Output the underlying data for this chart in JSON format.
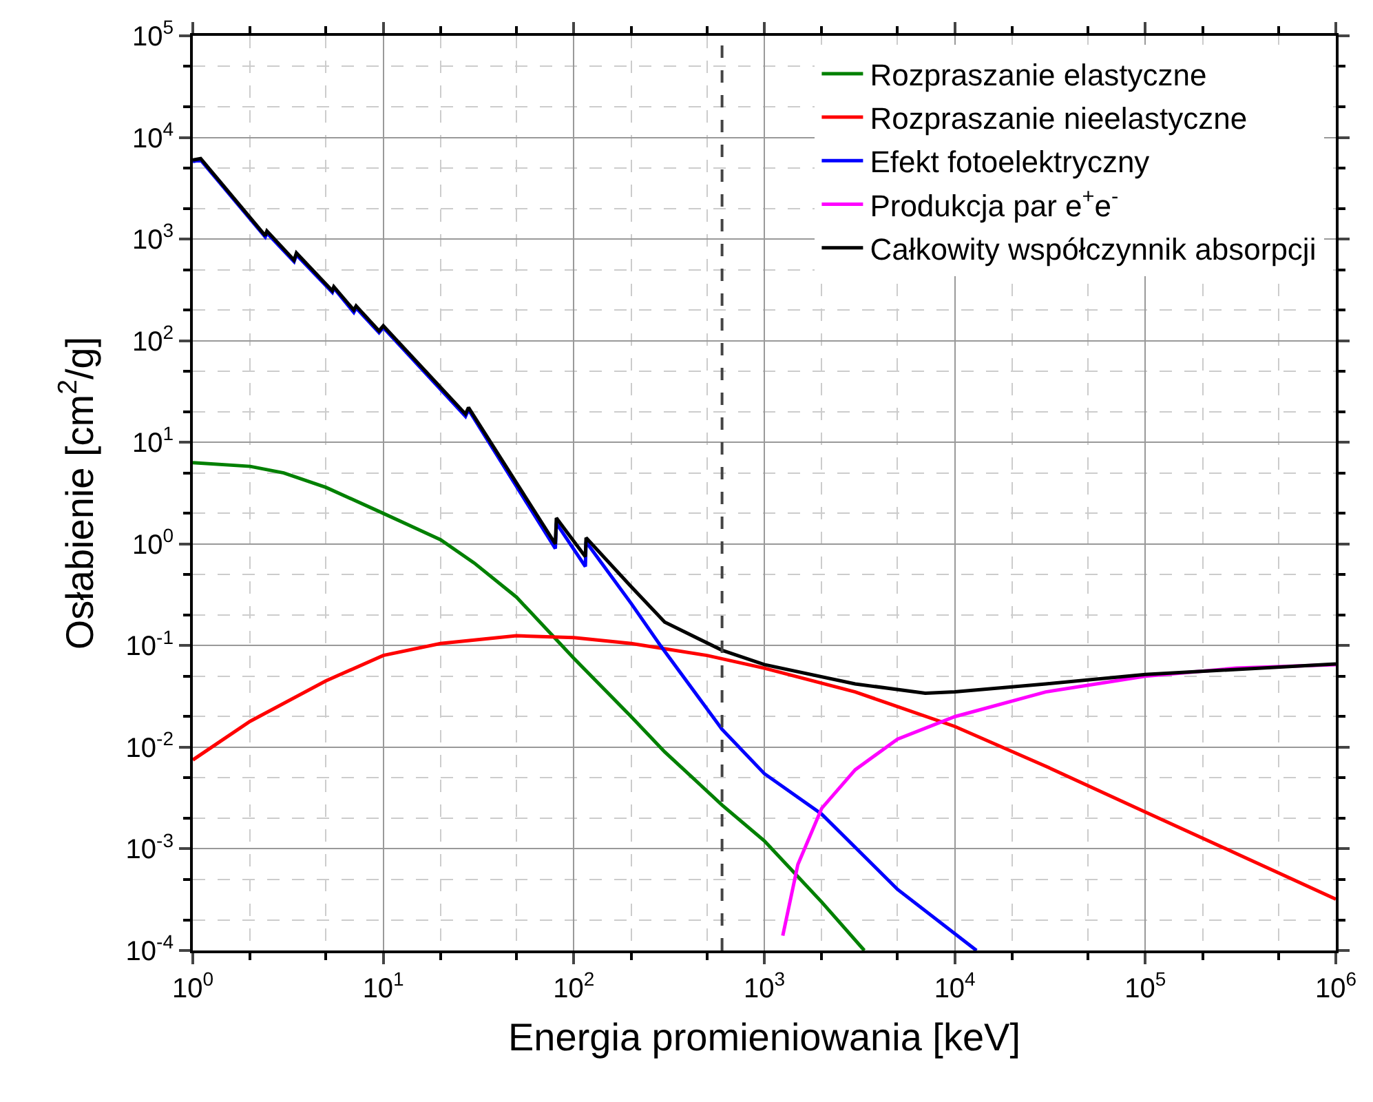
{
  "chart_data": {
    "type": "line",
    "xlabel": "Energia promieniowania [keV]",
    "ylabel": "Osłabienie [cm$^{2}$/g]",
    "log": "xy",
    "grid": true,
    "legend": "top right",
    "line_style": "solid",
    "marker": "none",
    "xlim": [
      1,
      1000000
    ],
    "ylim": [
      0.0001,
      100000
    ],
    "xticks": [
      {
        "value": 1,
        "label": "10$^{0}$"
      },
      {
        "value": 10,
        "label": "10$^{1}$"
      },
      {
        "value": 100,
        "label": "10$^{2}$"
      },
      {
        "value": 1000,
        "label": "10$^{3}$"
      },
      {
        "value": 10000,
        "label": "10$^{4}$"
      },
      {
        "value": 100000,
        "label": "10$^{5}$"
      },
      {
        "value": 1000000,
        "label": "10$^{6}$"
      }
    ],
    "yticks": [
      {
        "value": 0.0001,
        "label": "10$^{-4}$"
      },
      {
        "value": 0.001,
        "label": "10$^{-3}$"
      },
      {
        "value": 0.01,
        "label": "10$^{-2}$"
      },
      {
        "value": 0.1,
        "label": "10$^{-1}$"
      },
      {
        "value": 1,
        "label": "10$^{0}$"
      },
      {
        "value": 10,
        "label": "10$^{1}$"
      },
      {
        "value": 100,
        "label": "10$^{2}$"
      },
      {
        "value": 1000,
        "label": "10$^{3}$"
      },
      {
        "value": 10000,
        "label": "10$^{4}$"
      },
      {
        "value": 100000,
        "label": "10$^{5}$"
      }
    ],
    "ref_lines": [
      {
        "axis": "x",
        "value": 600,
        "color": "#444444",
        "line_style": "dashed"
      }
    ],
    "series": [
      {
        "name": "Rozpraszanie elastyczne",
        "color": "#008000",
        "x": [
          1,
          2,
          3,
          5,
          10,
          20,
          30,
          50,
          100,
          200,
          300,
          600,
          1000,
          2000,
          3350
        ],
        "values": [
          6.3,
          5.8,
          5.0,
          3.6,
          2.0,
          1.1,
          0.65,
          0.3,
          0.075,
          0.02,
          0.009,
          0.0027,
          0.0012,
          0.0003,
          0.0001
        ]
      },
      {
        "name": "Rozpraszanie nieelastyczne",
        "color": "#ff0000",
        "x": [
          1,
          2,
          5,
          10,
          20,
          50,
          100,
          200,
          500,
          1000,
          3000,
          10000,
          30000,
          100000,
          300000,
          1000000
        ],
        "values": [
          0.0075,
          0.018,
          0.045,
          0.08,
          0.105,
          0.125,
          0.12,
          0.105,
          0.08,
          0.06,
          0.035,
          0.016,
          0.0065,
          0.0023,
          0.0009,
          0.00032
        ]
      },
      {
        "name": "Efekt fotoelektryczny",
        "color": "#0000ff",
        "x": [
          1,
          1.1,
          2.4,
          2.45,
          3.4,
          3.5,
          5.4,
          5.5,
          7,
          7.2,
          9.5,
          10,
          27,
          28,
          80,
          81,
          115,
          116,
          200,
          285,
          600,
          1000,
          2000,
          5000,
          13000
        ],
        "values": [
          5800,
          6000,
          1050,
          1150,
          600,
          700,
          300,
          330,
          190,
          210,
          120,
          135,
          18,
          21,
          0.9,
          1.6,
          0.6,
          1.05,
          0.26,
          0.1,
          0.015,
          0.0055,
          0.0022,
          0.0004,
          0.0001
        ]
      },
      {
        "name": "Produkcja par e$^{+}$e$^{-}$",
        "color": "#ff00ff",
        "x": [
          1250,
          1500,
          2000,
          3000,
          5000,
          10000,
          30000,
          100000,
          300000,
          1000000
        ],
        "values": [
          0.00014,
          0.0007,
          0.0025,
          0.006,
          0.012,
          0.02,
          0.035,
          0.05,
          0.06,
          0.065
        ]
      },
      {
        "name": "Całkowity współczynnik absorpcji",
        "color": "#000000",
        "x": [
          1,
          1.1,
          2.4,
          2.45,
          3.4,
          3.5,
          5.4,
          5.5,
          7,
          7.2,
          9.5,
          10,
          27,
          28,
          80,
          81,
          115,
          116,
          200,
          300,
          600,
          1000,
          3000,
          7000,
          10000,
          30000,
          100000,
          1000000
        ],
        "values": [
          6000,
          6200,
          1080,
          1200,
          620,
          730,
          310,
          340,
          200,
          220,
          125,
          140,
          19,
          22,
          1.0,
          1.8,
          0.75,
          1.15,
          0.38,
          0.17,
          0.09,
          0.065,
          0.042,
          0.034,
          0.035,
          0.042,
          0.052,
          0.066
        ]
      }
    ]
  }
}
